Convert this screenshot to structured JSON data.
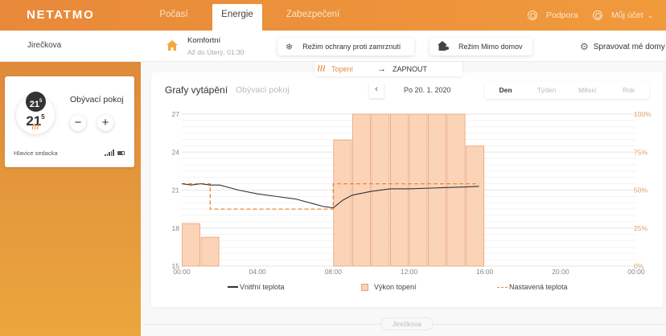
{
  "topbar": {
    "logo": "NETATMO",
    "tabs": [
      {
        "label": "Počasí",
        "active": false
      },
      {
        "label": "Energie",
        "active": true
      },
      {
        "label": "Zabezpečení",
        "active": false
      }
    ],
    "support": "Podpora",
    "account": "Můj účet",
    "account_chevron": "⌄"
  },
  "subbar": {
    "home_name": "Jirečkova",
    "mode": {
      "icon": "home-icon",
      "title": "Komfortní",
      "subtitle": "Až do Úterý, 01:30"
    },
    "frost_button": {
      "icon": "snowflake-icon",
      "label": "Režim ochrany proti zamrznutí"
    },
    "away_button": {
      "icon": "away-house-icon",
      "label": "Režim Mimo domov"
    },
    "manage": {
      "icon": "gear-icon",
      "label": "Spravovat mé domy"
    }
  },
  "room_card": {
    "setpoint_badge": {
      "int": "21",
      "dec": "5"
    },
    "current_temp": {
      "int": "21",
      "dec": "5"
    },
    "heating_icon": "heat-waves-icon",
    "room_name": "Obývací pokoj",
    "minus": "−",
    "plus": "+",
    "valve_name": "Hlavice sedacka",
    "signal_icon": "signal-icon",
    "battery_icon": "battery-icon"
  },
  "heat_toggle": {
    "icon": "heat-waves-icon",
    "label": "Topení",
    "arrow": "→",
    "action": "ZAPNOUT"
  },
  "chart_card": {
    "title": "Grafy vytápění",
    "subtitle": "Obývací pokoj",
    "prev": "‹",
    "date": "Po 20. 1. 2020",
    "periods": [
      {
        "label": "Den",
        "active": true
      },
      {
        "label": "Týden",
        "active": false
      },
      {
        "label": "Měsíc",
        "active": false
      },
      {
        "label": "Rok",
        "active": false
      }
    ]
  },
  "legend": {
    "inside_temp": "Vnitřní teplota",
    "heating_power": "Výkon topení",
    "set_temp": "Nastavená teplota"
  },
  "footer": {
    "home_pill": "Jirečkova"
  },
  "colors": {
    "brand_orange": "#e8893a",
    "bar_fill": "#fbd4b8",
    "bar_stroke": "#eba172",
    "temp_line": "#333333",
    "setpoint_line": "#e8893a",
    "right_axis": "#d7a271"
  },
  "chart_data": {
    "type": "bar+line",
    "title": "Grafy vytápění",
    "subtitle": "Obývací pokoj",
    "x_ticks": [
      "00:00",
      "04:00",
      "08:00",
      "12:00",
      "16:00",
      "20:00",
      "00:00"
    ],
    "y_left": {
      "label": "°C",
      "ticks": [
        15,
        18,
        21,
        24,
        27
      ],
      "range": [
        15,
        27
      ]
    },
    "y_right": {
      "label": "%",
      "ticks": [
        "0%",
        "25%",
        "50%",
        "75%",
        "100%"
      ],
      "range": [
        0,
        100
      ]
    },
    "grid": true,
    "legend_position": "bottom",
    "series": [
      {
        "name": "Výkon topení",
        "type": "bar",
        "axis": "right",
        "x_hours": [
          0,
          1,
          8,
          9,
          10,
          11,
          12,
          13,
          14,
          15
        ],
        "values": [
          28,
          19,
          83,
          100,
          100,
          100,
          100,
          100,
          100,
          79
        ]
      },
      {
        "name": "Vnitřní teplota",
        "type": "line",
        "axis": "left",
        "x_hours": [
          0,
          0.5,
          1,
          1.5,
          2,
          3,
          4,
          5,
          6,
          7,
          7.5,
          8,
          8.5,
          9,
          10,
          11,
          12,
          13,
          14,
          15,
          15.7
        ],
        "values": [
          21.5,
          21.4,
          21.5,
          21.4,
          21.4,
          21.0,
          20.7,
          20.5,
          20.3,
          19.9,
          19.7,
          19.6,
          20.2,
          20.6,
          20.9,
          21.1,
          21.1,
          21.15,
          21.2,
          21.25,
          21.3
        ]
      },
      {
        "name": "Nastavená teplota",
        "type": "step",
        "axis": "left",
        "x_hours": [
          0,
          1.5,
          1.5,
          8,
          8,
          15.7
        ],
        "values": [
          21.5,
          21.5,
          19.5,
          19.5,
          21.5,
          21.5
        ]
      }
    ]
  }
}
